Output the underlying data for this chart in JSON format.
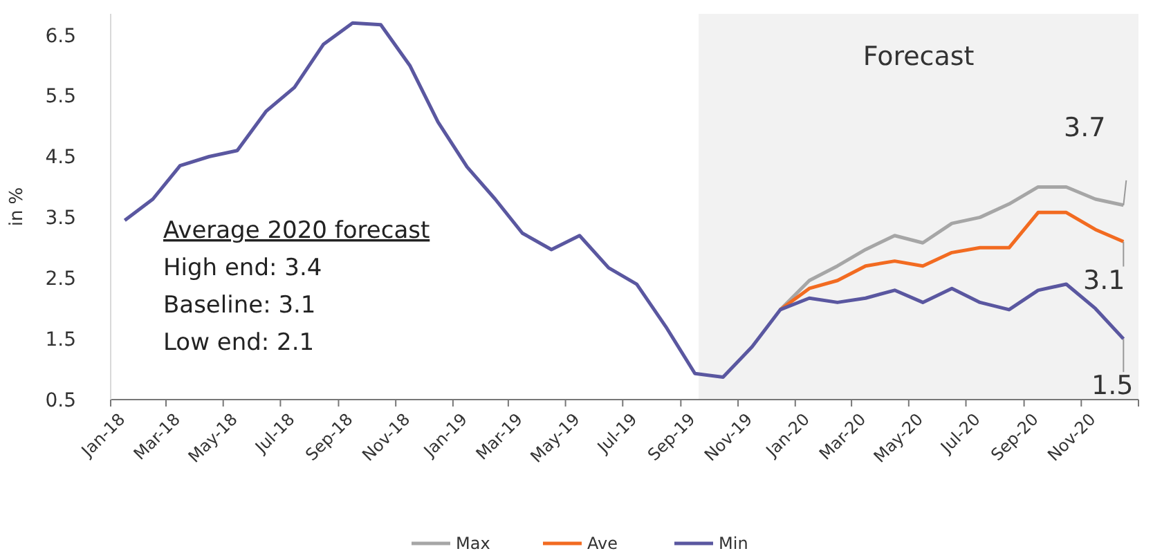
{
  "chart_data": {
    "type": "line",
    "ylabel": "in %",
    "ylim": [
      0.5,
      6.85
    ],
    "yticks": [
      0.5,
      1.5,
      2.5,
      3.5,
      4.5,
      5.5,
      6.5
    ],
    "x": [
      "2018-01-16",
      "2018-02-15",
      "2018-03-16",
      "2018-04-16",
      "2018-05-16",
      "2018-06-16",
      "2018-07-16",
      "2018-08-16",
      "2018-09-16",
      "2018-10-16",
      "2018-11-16",
      "2018-12-16",
      "2019-01-16",
      "2019-02-15",
      "2019-03-16",
      "2019-04-16",
      "2019-05-16",
      "2019-06-16",
      "2019-07-16",
      "2019-08-16",
      "2019-09-16",
      "2019-10-16",
      "2019-11-16",
      "2019-12-16",
      "2020-01-16",
      "2020-02-15",
      "2020-03-16",
      "2020-04-16",
      "2020-05-16",
      "2020-06-16",
      "2020-07-16",
      "2020-08-16",
      "2020-09-16",
      "2020-10-16",
      "2020-11-16",
      "2020-12-16"
    ],
    "xlim": [
      "2018-01-01",
      "2021-01-01"
    ],
    "xticks": [
      {
        "value": "2018-01-01",
        "label": "Jan-18"
      },
      {
        "value": "2018-03-01",
        "label": "Mar-18"
      },
      {
        "value": "2018-05-01",
        "label": "May-18"
      },
      {
        "value": "2018-07-01",
        "label": "Jul-18"
      },
      {
        "value": "2018-09-01",
        "label": "Sep-18"
      },
      {
        "value": "2018-11-01",
        "label": "Nov-18"
      },
      {
        "value": "2019-01-01",
        "label": "Jan-19"
      },
      {
        "value": "2019-03-01",
        "label": "Mar-19"
      },
      {
        "value": "2019-05-01",
        "label": "May-19"
      },
      {
        "value": "2019-07-01",
        "label": "Jul-19"
      },
      {
        "value": "2019-09-01",
        "label": "Sep-19"
      },
      {
        "value": "2019-11-01",
        "label": "Nov-19"
      },
      {
        "value": "2020-01-01",
        "label": "Jan-20"
      },
      {
        "value": "2020-03-01",
        "label": "Mar-20"
      },
      {
        "value": "2020-05-01",
        "label": "May-20"
      },
      {
        "value": "2020-07-01",
        "label": "Jul-20"
      },
      {
        "value": "2020-09-01",
        "label": "Sep-20"
      },
      {
        "value": "2020-11-01",
        "label": "Nov-20"
      },
      {
        "value": "2021-01-01",
        "label": null
      }
    ],
    "series": [
      {
        "name": "Max",
        "color": "#a6a6a6",
        "values": [
          null,
          null,
          null,
          null,
          null,
          null,
          null,
          null,
          null,
          null,
          null,
          null,
          null,
          null,
          null,
          null,
          null,
          null,
          null,
          null,
          null,
          null,
          null,
          1.98,
          2.46,
          2.7,
          2.97,
          3.2,
          3.08,
          3.4,
          3.5,
          3.72,
          4.0,
          4.0,
          3.8,
          3.7
        ]
      },
      {
        "name": "Ave",
        "color": "#f26b21",
        "values": [
          null,
          null,
          null,
          null,
          null,
          null,
          null,
          null,
          null,
          null,
          null,
          null,
          null,
          null,
          null,
          null,
          null,
          null,
          null,
          null,
          null,
          null,
          null,
          1.98,
          2.33,
          2.46,
          2.7,
          2.78,
          2.7,
          2.92,
          3.0,
          3.0,
          3.58,
          3.58,
          3.3,
          3.1
        ]
      },
      {
        "name": "Min",
        "color": "#5a57a0",
        "values": [
          3.45,
          3.8,
          4.35,
          4.5,
          4.6,
          5.25,
          5.64,
          6.35,
          6.7,
          6.67,
          6.0,
          5.07,
          4.33,
          3.8,
          3.24,
          2.97,
          3.2,
          2.67,
          2.4,
          1.7,
          0.93,
          0.87,
          1.37,
          1.98,
          2.17,
          2.1,
          2.17,
          2.3,
          2.1,
          2.33,
          2.1,
          1.98,
          2.3,
          2.4,
          2.0,
          1.5
        ]
      }
    ],
    "bands": [
      {
        "axis": "x",
        "from": "2019-09-20",
        "to": "2021-01-01",
        "label": "Forecast",
        "color": "#f2f2f2"
      }
    ],
    "annotations": [
      "Average 2020 forecast",
      "High end: 3.4",
      "Baseline: 3.1",
      "Low end: 2.1",
      {
        "text": "3.7",
        "x": "2020-12-16",
        "y": 3.7
      },
      {
        "text": "3.1",
        "x": "2020-12-16",
        "y": 3.1
      },
      {
        "text": "1.5",
        "x": "2020-12-16",
        "y": 1.5
      }
    ],
    "legend": "bottom"
  }
}
